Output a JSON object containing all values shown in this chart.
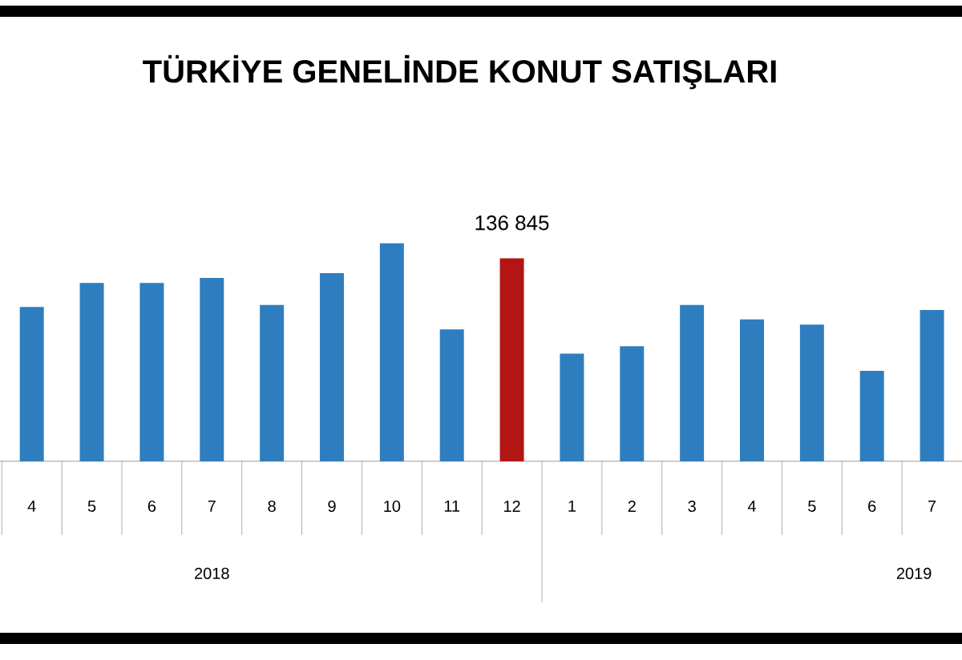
{
  "chart_data": {
    "type": "bar",
    "title": "TÜRKİYE GENELİNDE KONUT SATIŞLARI",
    "categories": [
      "4",
      "5",
      "6",
      "7",
      "8",
      "9",
      "10",
      "11",
      "12",
      "1",
      "2",
      "3",
      "4",
      "5",
      "6",
      "7"
    ],
    "values": [
      104000,
      120300,
      120300,
      123600,
      105400,
      126800,
      146900,
      88900,
      136845,
      72600,
      77500,
      105400,
      95600,
      92200,
      61000,
      102000
    ],
    "colors": [
      "#2e7ebf",
      "#2e7ebf",
      "#2e7ebf",
      "#2e7ebf",
      "#2e7ebf",
      "#2e7ebf",
      "#2e7ebf",
      "#2e7ebf",
      "#b31515",
      "#2e7ebf",
      "#2e7ebf",
      "#2e7ebf",
      "#2e7ebf",
      "#2e7ebf",
      "#2e7ebf",
      "#2e7ebf"
    ],
    "value_labels": [
      null,
      null,
      null,
      null,
      null,
      null,
      null,
      null,
      "136 845",
      null,
      null,
      null,
      null,
      null,
      null,
      null
    ],
    "annotations": [
      "2018",
      "2019"
    ]
  }
}
